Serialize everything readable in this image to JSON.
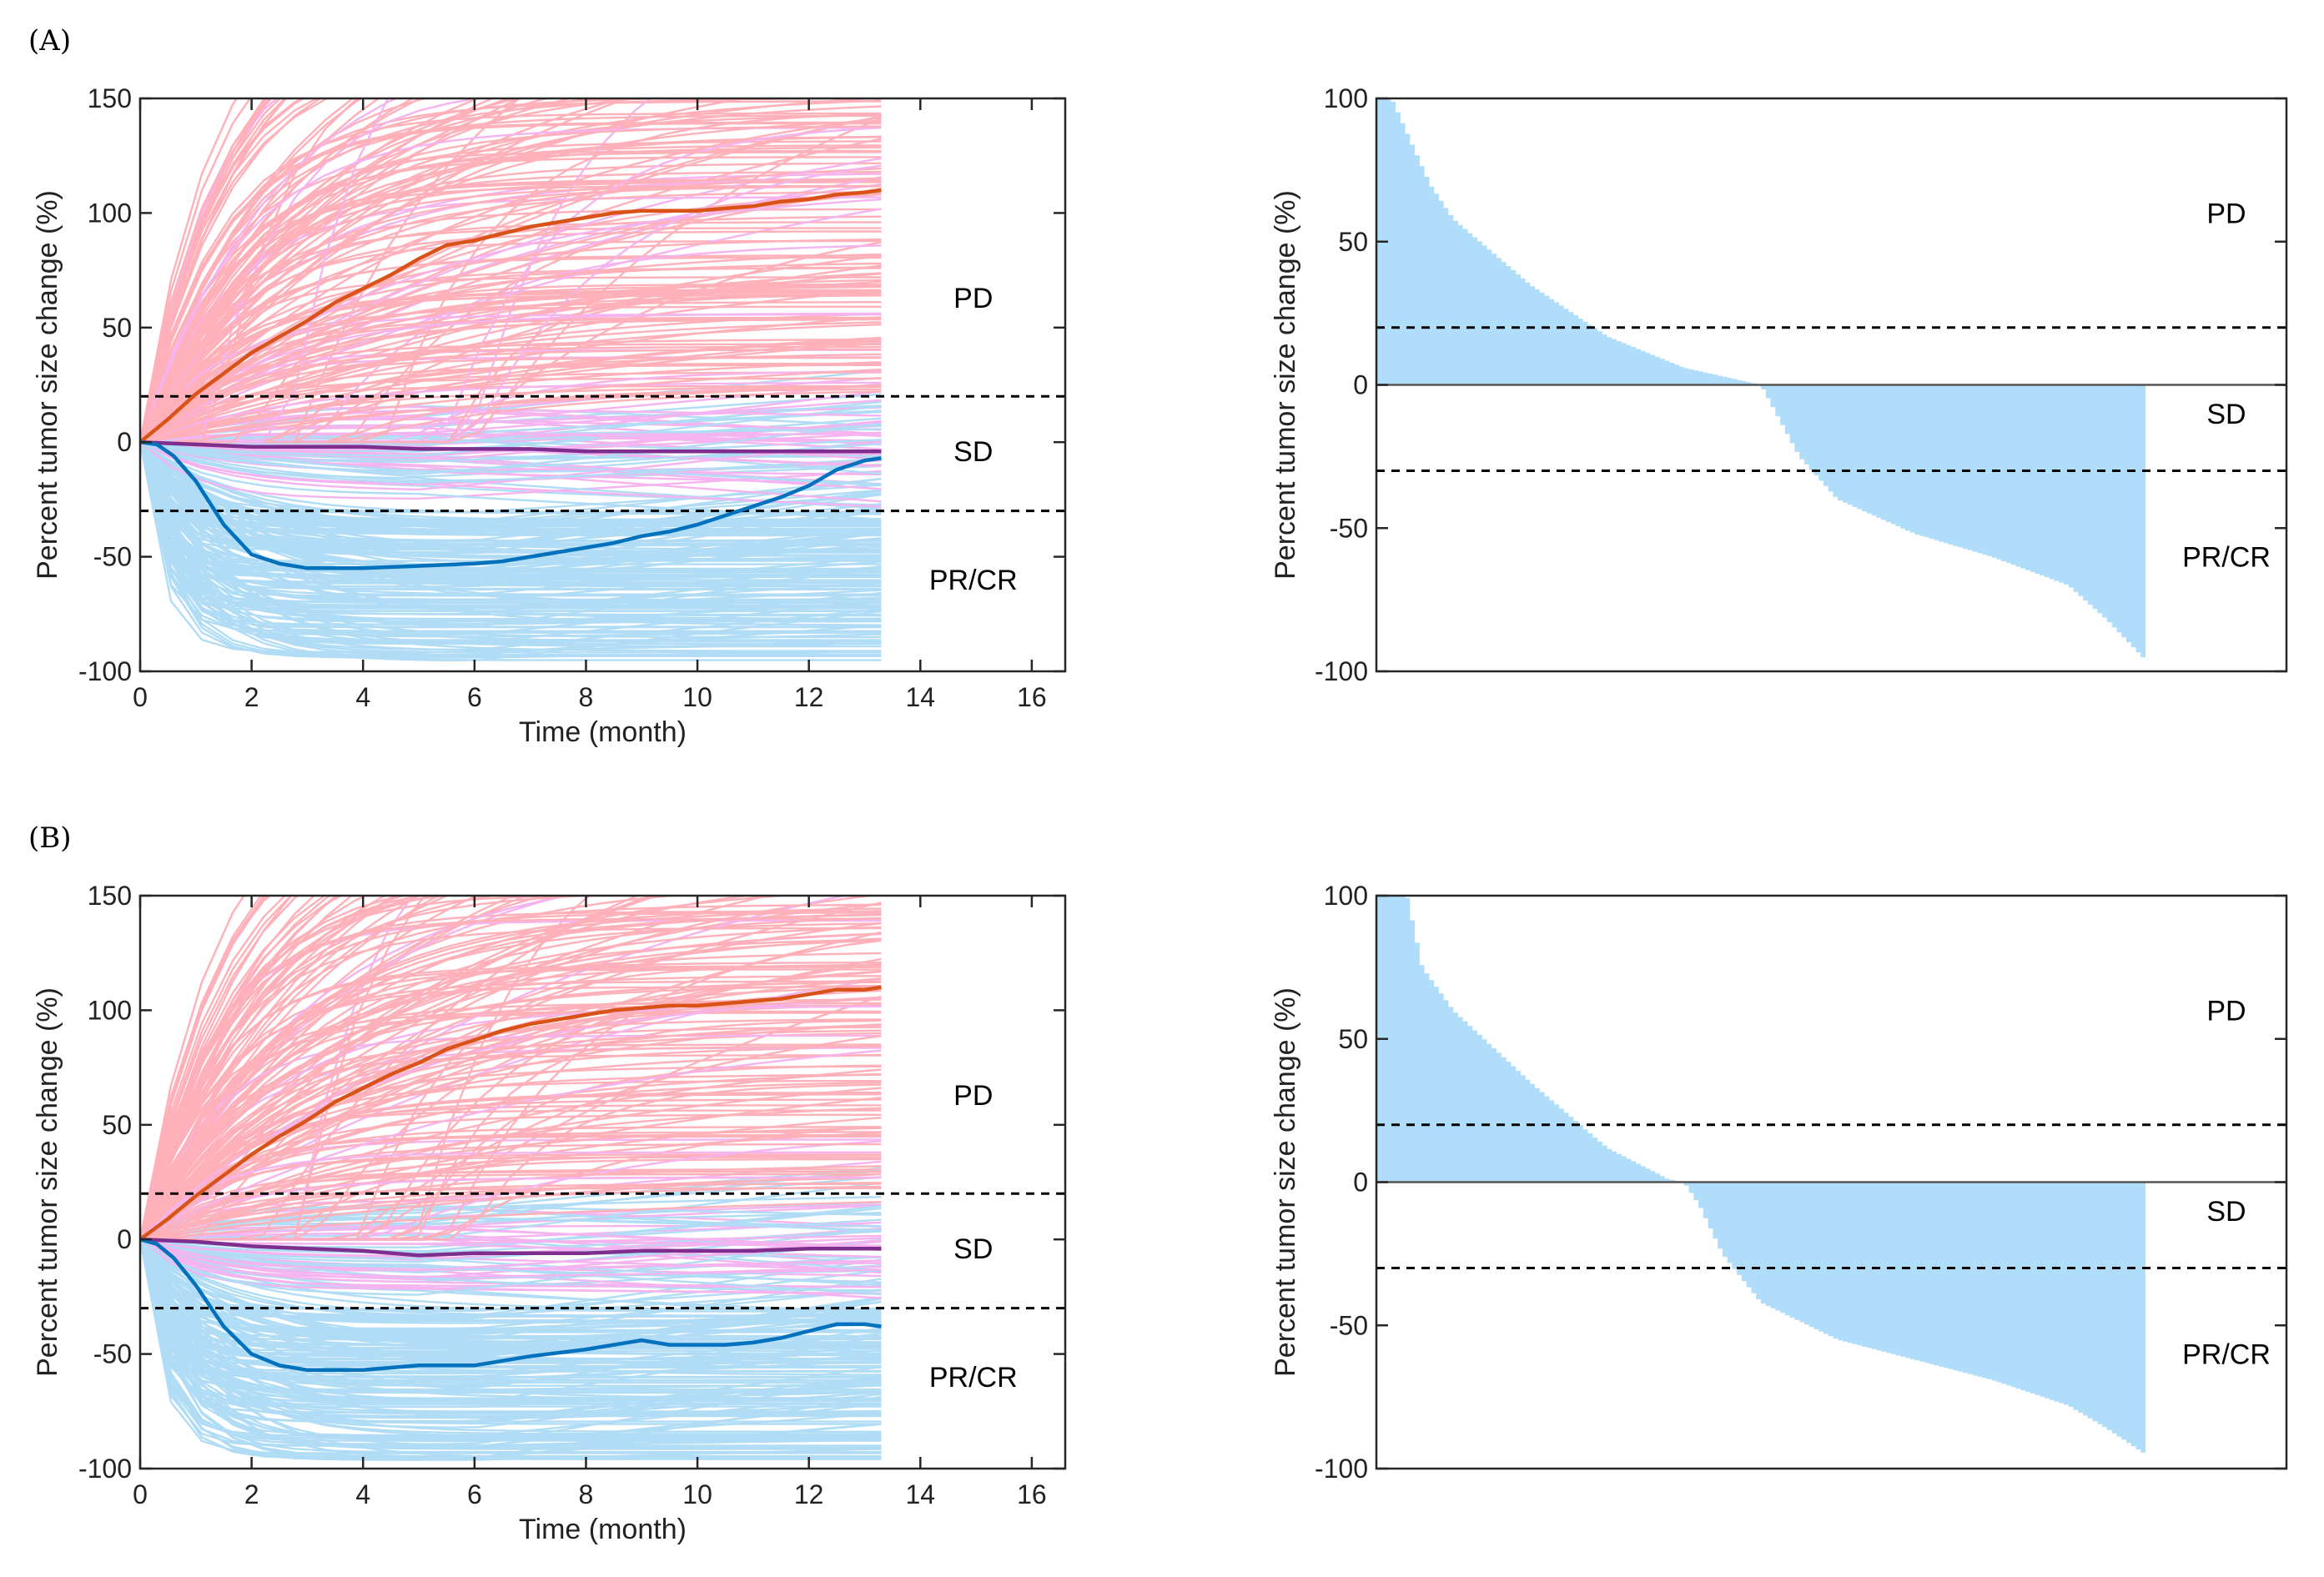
{
  "panels": [
    {
      "label": "(A)"
    },
    {
      "label": "(B)"
    }
  ],
  "colors": {
    "pd_spaghetti": "#ffb0b8",
    "sd_spaghetti": "#f5b3ef",
    "pr_spaghetti": "#b0dcf5",
    "pd_median": "#d95319",
    "sd_median": "#7e2f8e",
    "pr_median": "#0072bd",
    "waterfall_fill": "#b0defa",
    "threshold": "#000000"
  },
  "chart_data": [
    {
      "panel": "(A)",
      "type": "line",
      "subtype": "spaghetti",
      "xlabel": "Time (month)",
      "ylabel": "Percent tumor size change (%)",
      "xlim": [
        0,
        16.6
      ],
      "ylim": [
        -100,
        150
      ],
      "xticks": [
        "0",
        "2",
        "4",
        "6",
        "8",
        "10",
        "12",
        "14",
        "16"
      ],
      "yticks": [
        "-100",
        "-50",
        "0",
        "50",
        "100",
        "150"
      ],
      "thresholds": [
        20,
        -30
      ],
      "region_labels": [
        "PD",
        "SD",
        "PR/CR"
      ],
      "series": [
        {
          "color_key": "pd_median",
          "x": [
            0,
            0.5,
            1,
            1.5,
            2,
            2.5,
            3,
            3.5,
            4,
            4.5,
            5,
            5.5,
            6,
            6.5,
            7,
            7.5,
            8,
            8.5,
            9,
            9.5,
            10,
            10.5,
            11,
            11.5,
            12,
            12.5,
            13,
            13.3
          ],
          "y": [
            0,
            10,
            21,
            30,
            39,
            46,
            53,
            61,
            67,
            73,
            80,
            86,
            88,
            91,
            94,
            96,
            98,
            100,
            101,
            101,
            101,
            102,
            103,
            105,
            106,
            108,
            109,
            110
          ]
        },
        {
          "color_key": "sd_median",
          "x": [
            0,
            1,
            2,
            3,
            4,
            5,
            6,
            7,
            8,
            9,
            10,
            11,
            12,
            13.3
          ],
          "y": [
            0,
            -1,
            -2,
            -2,
            -2,
            -3,
            -3,
            -3,
            -4,
            -4,
            -4,
            -4,
            -4,
            -4
          ]
        },
        {
          "color_key": "pr_median",
          "x": [
            0,
            0.3,
            0.6,
            1,
            1.5,
            2,
            2.5,
            3,
            3.5,
            4,
            5,
            6,
            6.5,
            7,
            7.5,
            8,
            8.5,
            9,
            9.5,
            10,
            10.5,
            11,
            11.5,
            12,
            12.5,
            13,
            13.3
          ],
          "y": [
            0,
            -1,
            -6,
            -17,
            -36,
            -49,
            -53,
            -55,
            -55,
            -55,
            -54,
            -53,
            -52,
            -50,
            -48,
            -46,
            -44,
            -41,
            -39,
            -36,
            -32,
            -28,
            -24,
            -19,
            -12,
            -8,
            -7
          ]
        }
      ]
    },
    {
      "panel": "(A)",
      "type": "bar",
      "subtype": "waterfall",
      "ylabel": "Percent tumor size change (%)",
      "ylim": [
        -100,
        100
      ],
      "yticks": [
        "-100",
        "-50",
        "0",
        "50",
        "100"
      ],
      "thresholds": [
        20,
        -30
      ],
      "region_labels": [
        "PD",
        "SD",
        "PR/CR"
      ],
      "fraction_points": [
        0,
        0.02,
        0.07,
        0.1,
        0.2,
        0.3,
        0.4,
        0.5,
        0.51,
        0.55,
        0.6,
        0.7,
        0.8,
        0.9,
        0.95,
        1
      ],
      "values": [
        100,
        100,
        70,
        58,
        35,
        17,
        6,
        0,
        -5,
        -25,
        -40,
        -52,
        -60,
        -70,
        -82,
        -96
      ]
    },
    {
      "panel": "(B)",
      "type": "line",
      "subtype": "spaghetti",
      "xlabel": "Time (month)",
      "ylabel": "Percent tumor size change (%)",
      "xlim": [
        0,
        16.6
      ],
      "ylim": [
        -100,
        150
      ],
      "xticks": [
        "0",
        "2",
        "4",
        "6",
        "8",
        "10",
        "12",
        "14",
        "16"
      ],
      "yticks": [
        "-100",
        "-50",
        "0",
        "50",
        "100",
        "150"
      ],
      "thresholds": [
        20,
        -30
      ],
      "region_labels": [
        "PD",
        "SD",
        "PR/CR"
      ],
      "series": [
        {
          "color_key": "pd_median",
          "x": [
            0,
            0.5,
            1,
            1.5,
            2,
            2.5,
            3,
            3.5,
            4,
            4.5,
            5,
            5.5,
            6,
            6.5,
            7,
            7.5,
            8,
            8.5,
            9,
            9.5,
            10,
            10.5,
            11,
            11.5,
            12,
            12.5,
            13,
            13.3
          ],
          "y": [
            0,
            9,
            19,
            28,
            37,
            45,
            52,
            60,
            66,
            72,
            77,
            83,
            87,
            91,
            94,
            96,
            98,
            100,
            101,
            102,
            102,
            103,
            104,
            105,
            107,
            109,
            109,
            110
          ]
        },
        {
          "color_key": "sd_median",
          "x": [
            0,
            1,
            2,
            3,
            4,
            5,
            6,
            7,
            8,
            9,
            10,
            11,
            12,
            13.3
          ],
          "y": [
            0,
            -1,
            -3,
            -4,
            -5,
            -7,
            -6,
            -6,
            -6,
            -5,
            -5,
            -5,
            -4,
            -4
          ]
        },
        {
          "color_key": "pr_median",
          "x": [
            0,
            0.3,
            0.6,
            1,
            1.5,
            2,
            2.5,
            3,
            3.5,
            4,
            5,
            6,
            6.5,
            7,
            8,
            9,
            9.5,
            10,
            10.5,
            11,
            11.5,
            12,
            12.5,
            13,
            13.3
          ],
          "y": [
            0,
            -2,
            -8,
            -20,
            -38,
            -50,
            -55,
            -57,
            -57,
            -57,
            -55,
            -55,
            -53,
            -51,
            -48,
            -44,
            -46,
            -46,
            -46,
            -45,
            -43,
            -40,
            -37,
            -37,
            -38
          ]
        }
      ]
    },
    {
      "panel": "(B)",
      "type": "bar",
      "subtype": "waterfall",
      "ylabel": "Percent tumor size change (%)",
      "ylim": [
        -100,
        100
      ],
      "yticks": [
        "-100",
        "-50",
        "0",
        "50",
        "100"
      ],
      "thresholds": [
        20,
        -30
      ],
      "region_labels": [
        "PD",
        "SD",
        "PR/CR"
      ],
      "fraction_points": [
        0,
        0.04,
        0.06,
        0.1,
        0.2,
        0.3,
        0.38,
        0.4,
        0.42,
        0.45,
        0.5,
        0.6,
        0.7,
        0.8,
        0.9,
        0.95,
        1
      ],
      "values": [
        100,
        100,
        75,
        60,
        35,
        12,
        1,
        0,
        -8,
        -25,
        -42,
        -55,
        -62,
        -69,
        -78,
        -86,
        -95
      ]
    }
  ]
}
